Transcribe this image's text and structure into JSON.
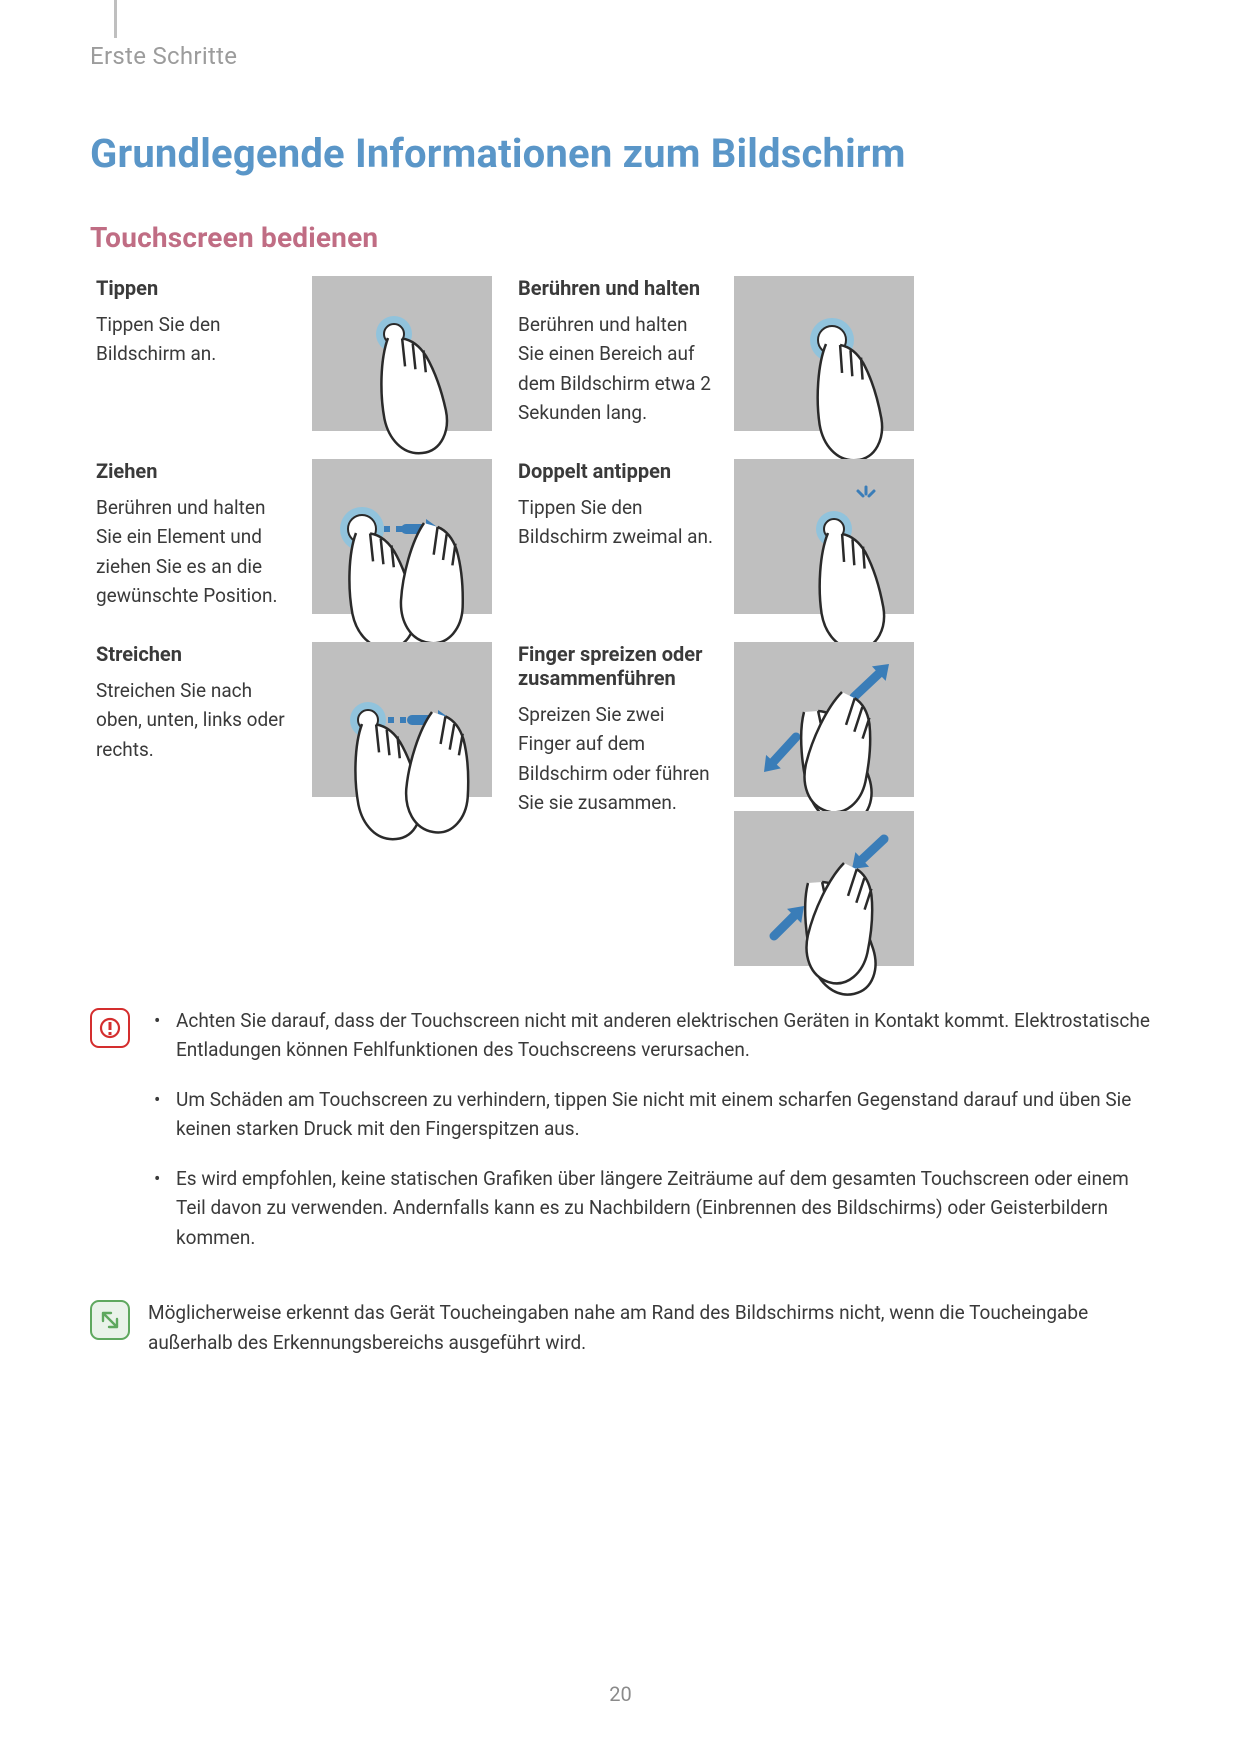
{
  "chapter": "Erste Schritte",
  "section_title": "Grundlegende Informationen zum Bildschirm",
  "subsection_title": "Touchscreen bedienen",
  "colors": {
    "title_blue": "#5a96c8",
    "subtitle_pink": "#c06d84",
    "text": "#3a3a3a",
    "muted": "#9c9c9c",
    "illus_bg": "#bfbfbf",
    "accent_arrow": "#3a7db8",
    "touch_ring_outer": "#8cc3df",
    "touch_ring_inner": "#ffffff",
    "warn": "#d42e2e",
    "info": "#5fa85f"
  },
  "gestures": [
    {
      "title": "Tippen",
      "desc": "Tippen Sie den Bildschirm an.",
      "kind": "tap"
    },
    {
      "title": "Berühren und halten",
      "desc": "Berühren und halten Sie einen Bereich auf dem Bildschirm etwa 2 Sekunden lang.",
      "kind": "hold"
    },
    {
      "title": "Ziehen",
      "desc": "Berühren und halten Sie ein Element und ziehen Sie es an die gewünschte Position.",
      "kind": "drag"
    },
    {
      "title": "Doppelt antippen",
      "desc": "Tippen Sie den Bildschirm zweimal an.",
      "kind": "doubletap"
    },
    {
      "title": "Streichen",
      "desc": "Streichen Sie nach oben, unten, links oder rechts.",
      "kind": "swipe"
    },
    {
      "title": "Finger spreizen oder zusammenführen",
      "desc": "Spreizen Sie zwei Finger auf dem Bildschirm oder führen Sie sie zusammen.",
      "kind": "pinch"
    }
  ],
  "warning_bullets": [
    "Achten Sie darauf, dass der Touchscreen nicht mit anderen elektrischen Geräten in Kontakt kommt. Elektrostatische Entladungen können Fehlfunktionen des Touchscreens verursachen.",
    "Um Schäden am Touchscreen zu verhindern, tippen Sie nicht mit einem scharfen Gegenstand darauf und üben Sie keinen starken Druck mit den Fingerspitzen aus.",
    "Es wird empfohlen, keine statischen Grafiken über längere Zeiträume auf dem gesamten Touchscreen oder einem Teil davon zu verwenden. Andernfalls kann es zu Nachbildern (Einbrennen des Bildschirms) oder Geisterbildern kommen."
  ],
  "info_note": "Möglicherweise erkennt das Gerät Toucheingaben nahe am Rand des Bildschirms nicht, wenn die Toucheingabe außerhalb des Erkennungsbereichs ausgeführt wird.",
  "page_number": "20"
}
